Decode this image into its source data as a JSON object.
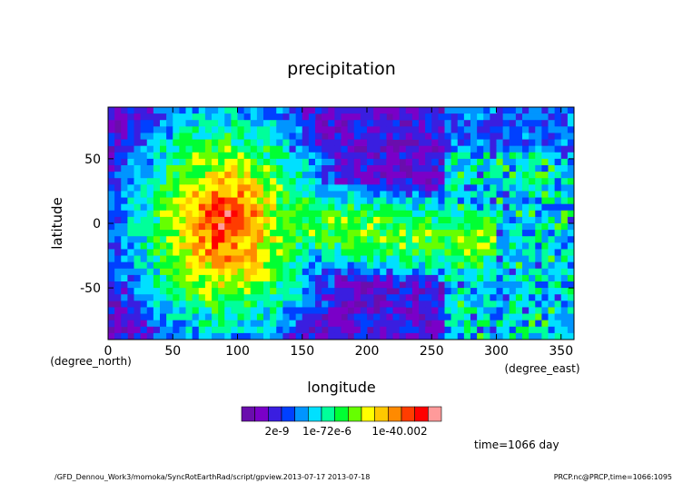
{
  "chart_data": {
    "type": "heatmap",
    "title": "precipitation",
    "xlabel": "longitude",
    "ylabel": "latitude",
    "x_unit": "(degree_east)",
    "y_unit": "(degree_north)",
    "xlim": [
      0,
      360
    ],
    "ylim": [
      -90,
      90
    ],
    "x_ticks": [
      "0",
      "50",
      "100",
      "150",
      "200",
      "250",
      "300",
      "350"
    ],
    "y_ticks": [
      "50",
      "0",
      "-50"
    ],
    "time_label": "time=1066 day",
    "colorbar": {
      "labels": [
        "2e-9",
        "1e-72e-6",
        "1e-40.002"
      ],
      "colors": [
        "#6a0dad",
        "#7a00c8",
        "#3a1ee0",
        "#0040ff",
        "#0095ff",
        "#00e0ff",
        "#00ff9a",
        "#00ff33",
        "#66ff00",
        "#ffff00",
        "#ffc800",
        "#ff8a00",
        "#ff3c00",
        "#ff0000",
        "#ff9a9a"
      ]
    },
    "grid": false
  },
  "footer": {
    "left": "/GFD_Dennou_Work3/momoka/SyncRotEarthRad/script/gpview.2013-07-17  2013-07-18",
    "right": "PRCP.nc@PRCP,time=1066:1095"
  }
}
